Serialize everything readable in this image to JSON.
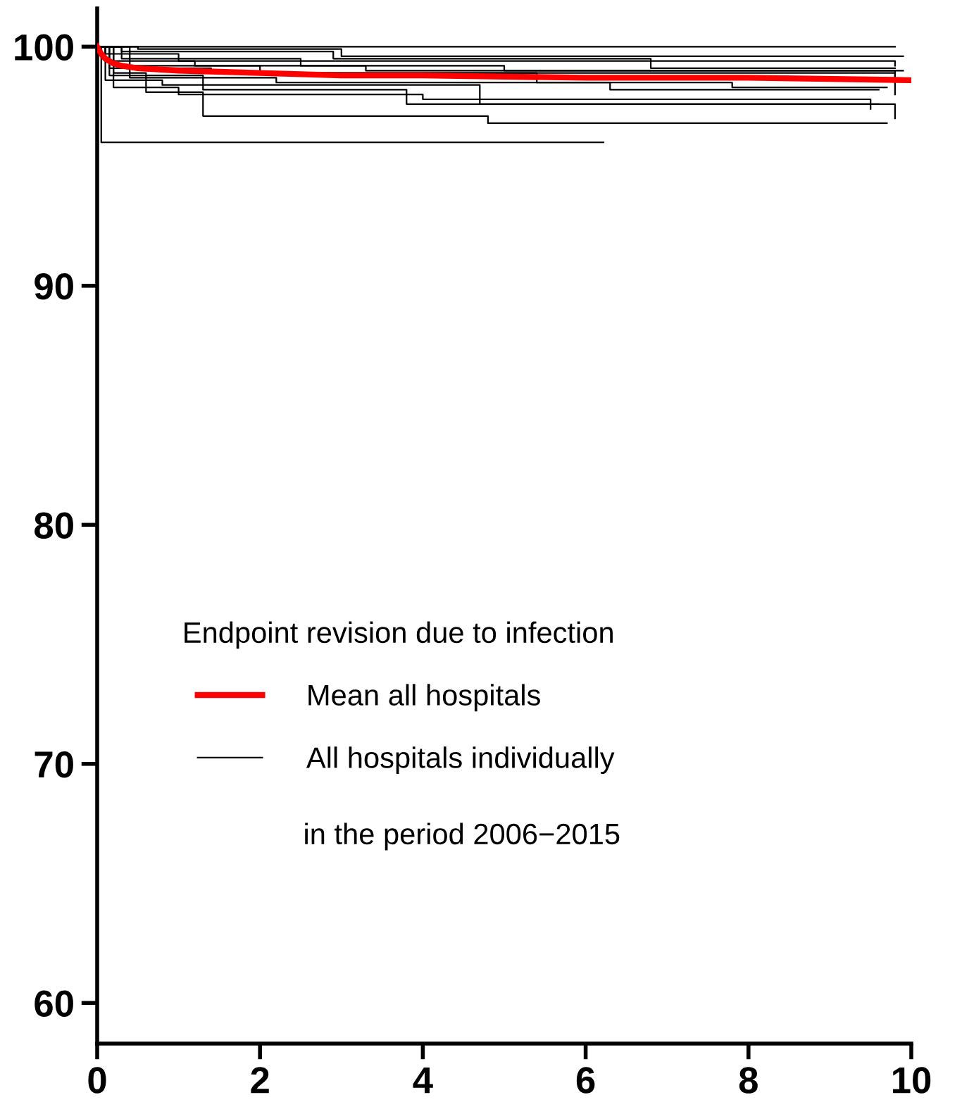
{
  "chart_data": {
    "type": "step",
    "legend_title": "Endpoint revision due to infection",
    "annotations": [
      "in the period 2006−2015"
    ],
    "series": [
      {
        "color": "#000000",
        "x": [
          0,
          0.05,
          6.22
        ],
        "values": [
          100,
          96.0,
          96.0
        ]
      },
      {
        "type": "step",
        "color": "#000000",
        "x": [
          0,
          0.2,
          0.6,
          1.3,
          4.8,
          9.7
        ],
        "values": [
          100,
          98.9,
          98.1,
          97.1,
          96.8,
          96.8
        ]
      },
      {
        "type": "step",
        "color": "#000000",
        "x": [
          0,
          0.15,
          1.3,
          3.8,
          9.8
        ],
        "values": [
          100,
          98.8,
          98.2,
          97.6,
          97.0
        ]
      },
      {
        "type": "step",
        "color": "#000000",
        "x": [
          0,
          0.3,
          2.5,
          5.0,
          9.8
        ],
        "values": [
          100,
          99.5,
          99.2,
          99.0,
          98.5
        ]
      },
      {
        "type": "step",
        "color": "#000000",
        "x": [
          0,
          0.5,
          3.0,
          9.9
        ],
        "values": [
          100,
          99.9,
          99.6,
          99.6
        ]
      },
      {
        "type": "step",
        "color": "#000000",
        "x": [
          0,
          9.8
        ],
        "values": [
          100,
          100
        ]
      },
      {
        "type": "step",
        "color": "#000000",
        "x": [
          0,
          0.1,
          1.0,
          4.7,
          9.8
        ],
        "values": [
          100,
          99.7,
          99.4,
          99.4,
          99.2
        ]
      },
      {
        "type": "step",
        "color": "#000000",
        "x": [
          0,
          0.2,
          2.0,
          5.4,
          6.3,
          9.6
        ],
        "values": [
          100,
          99.2,
          98.9,
          98.5,
          98.2,
          98.2
        ]
      },
      {
        "type": "step",
        "color": "#000000",
        "x": [
          0,
          0.1,
          0.8,
          4.7,
          9.6
        ],
        "values": [
          100,
          98.6,
          98.4,
          97.6,
          97.6
        ]
      },
      {
        "type": "step",
        "color": "#000000",
        "x": [
          0,
          0.4,
          2.2,
          7.8,
          9.7
        ],
        "values": [
          100,
          98.7,
          98.5,
          98.3,
          98.3
        ]
      },
      {
        "type": "step",
        "color": "#000000",
        "x": [
          0,
          0.1,
          1.2,
          3.3,
          9.9
        ],
        "values": [
          100,
          99.4,
          99.2,
          99.0,
          99.0
        ]
      },
      {
        "type": "step",
        "color": "#000000",
        "x": [
          0,
          0.3,
          2.9,
          6.8,
          9.8
        ],
        "values": [
          100,
          99.8,
          99.5,
          99.1,
          99.1
        ]
      },
      {
        "type": "step",
        "color": "#000000",
        "x": [
          0,
          0.2,
          1.0,
          4.0,
          9.5
        ],
        "values": [
          100,
          98.3,
          98.0,
          97.8,
          97.4
        ]
      },
      {
        "name": "All hospitals individually",
        "color": "#000000",
        "x": [
          0,
          0.15,
          1.4,
          9.8
        ],
        "values": [
          100,
          99.1,
          98.9,
          98.0
        ]
      },
      {
        "type": "line",
        "name": "Mean all hospitals",
        "color": "#ff0000",
        "x": [
          0,
          0.05,
          0.1,
          0.2,
          0.3,
          0.5,
          1,
          2,
          3,
          4,
          6,
          8,
          10
        ],
        "values": [
          100,
          99.7,
          99.5,
          99.3,
          99.2,
          99.1,
          99.0,
          98.9,
          98.8,
          98.8,
          98.7,
          98.7,
          98.6
        ]
      }
    ],
    "xlim": [
      0,
      10
    ],
    "xticks": [
      0,
      2,
      4,
      6,
      8,
      10
    ],
    "ylim": [
      58.3,
      101.6
    ],
    "yticks": [
      60,
      70,
      80,
      90,
      100
    ],
    "legend": "bottom",
    "grid": false
  }
}
